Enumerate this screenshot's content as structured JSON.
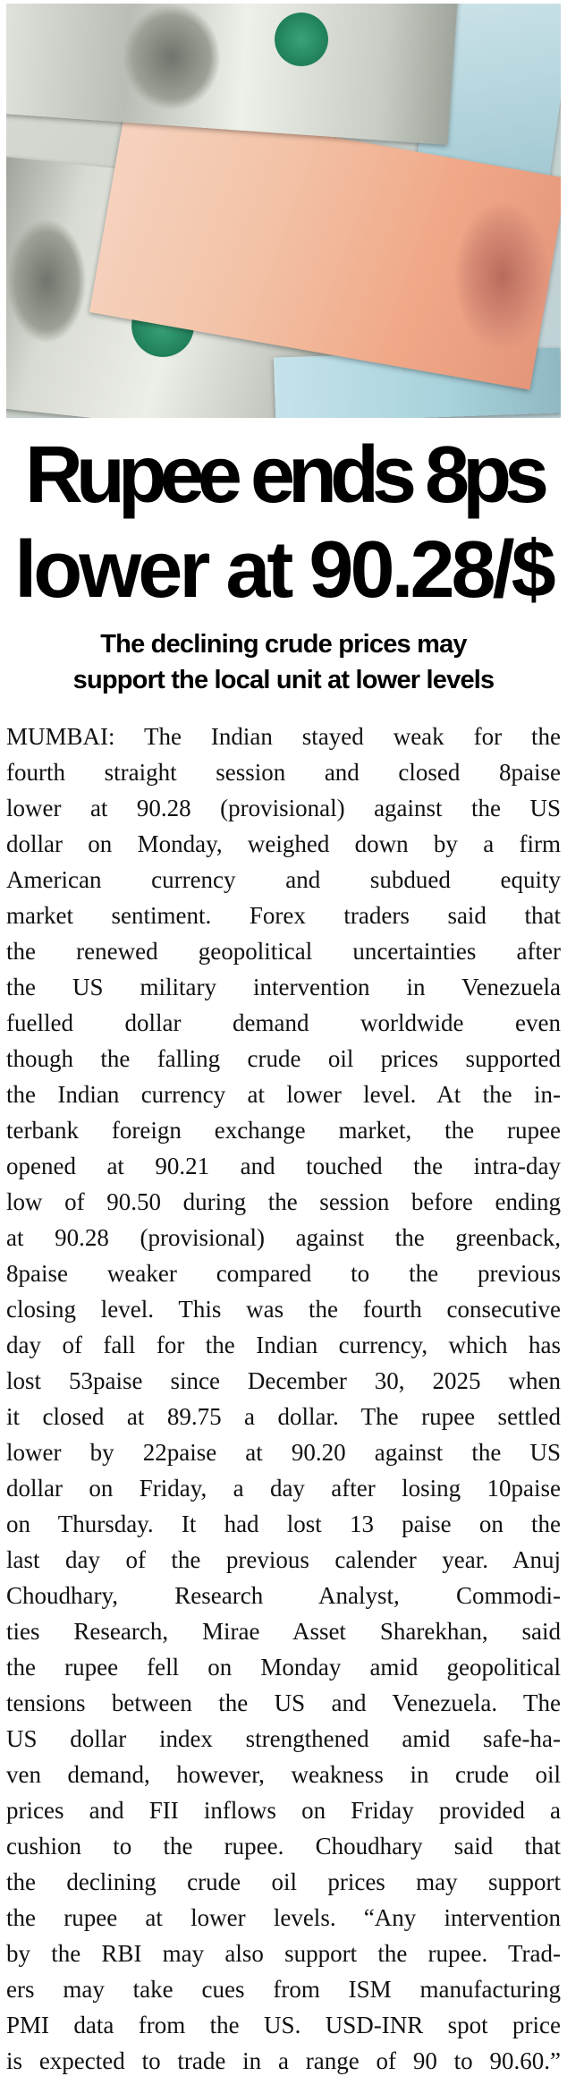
{
  "article": {
    "headline": [
      "Rupee ends 8ps",
      "lower at 90.28/$"
    ],
    "subheadline": [
      "The declining crude prices may",
      "support the local unit at lower levels"
    ],
    "body_lines": [
      "MUMBAI: The Indian stayed weak for the",
      "fourth straight session and closed 8paise",
      "lower at 90.28 (provisional) against the US",
      "dollar on Monday, weighed down by a firm",
      "American currency and subdued equity",
      "market sentiment. Forex traders said that",
      "the renewed geopolitical uncertainties after",
      "the US military intervention in Venezuela",
      "fuelled dollar demand worldwide even",
      "though the falling crude oil prices supported",
      "the Indian currency at lower level. At the in-",
      "terbank foreign exchange market, the rupee",
      "opened at 90.21 and touched the intra-day",
      "low of 90.50 during the session before ending",
      "at 90.28 (provisional) against the greenback,",
      "8paise weaker compared to the previous",
      "closing level. This was the fourth consecutive",
      "day of fall for the Indian currency, which has",
      "lost 53paise since December 30, 2025 when",
      "it closed at 89.75 a dollar. The rupee settled",
      "lower by 22paise at 90.20 against the US",
      "dollar on Friday, a day after losing 10paise",
      "on Thursday. It had lost 13 paise on the",
      "last day of the previous calender year. Anuj",
      "Choudhary, Research Analyst, Commodi-",
      "ties Research, Mirae Asset Sharekhan, said",
      "the rupee fell on Monday amid geopolitical",
      "tensions between the US and Venezuela. The",
      "US dollar index strengthened amid safe-ha-",
      "ven demand, however, weakness in crude oil",
      "prices and FII inflows on Friday provided a",
      "cushion to the rupee. Choudhary said that",
      "the declining crude oil prices may support",
      "the rupee at lower levels. “Any intervention",
      "by the RBI may also support the rupee. Trad-",
      "ers may take cues from ISM manufacturing",
      "PMI data from the US. USD-INR spot price",
      "is expected to trade in a range of 90 to 90.60.”"
    ]
  }
}
